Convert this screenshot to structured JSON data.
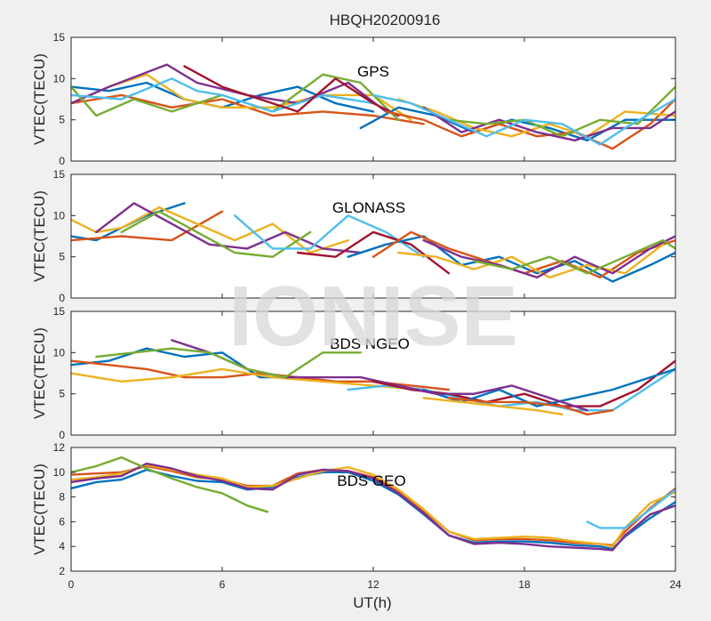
{
  "title": "HBQH20200916",
  "watermark": "IONISE",
  "colors": [
    "#0072bd",
    "#d95319",
    "#edb120",
    "#7e2f8e",
    "#77ac30",
    "#4dbeee",
    "#a2142f"
  ],
  "chart_data": [
    {
      "type": "line",
      "label": "GPS",
      "ylabel": "VTEC(TECU)",
      "xlim": [
        0,
        24
      ],
      "ylim": [
        0,
        15
      ],
      "yticks": [
        0,
        5,
        10,
        15
      ],
      "xticks": [
        0,
        6,
        12,
        18,
        24
      ],
      "series": [
        {
          "x": [
            0,
            1.5,
            3,
            4.5,
            6,
            7.5,
            9,
            10.5,
            12
          ],
          "y": [
            9,
            8.5,
            9.5,
            7.5,
            6.5,
            8,
            9,
            7,
            6
          ]
        },
        {
          "x": [
            0,
            2,
            4,
            6,
            8,
            10,
            12,
            14
          ],
          "y": [
            7,
            8,
            6.5,
            7.5,
            5.5,
            6,
            5.5,
            4.5
          ]
        },
        {
          "x": [
            1.5,
            3,
            4.5,
            6,
            8,
            10,
            12,
            13.5
          ],
          "y": [
            9,
            10.5,
            7.5,
            6.5,
            6.5,
            8,
            8,
            5
          ]
        },
        {
          "x": [
            0,
            1.5,
            3.8,
            5,
            7,
            9,
            11,
            12.5
          ],
          "y": [
            7,
            9,
            11.7,
            9.5,
            8,
            7,
            9.5,
            6
          ]
        },
        {
          "x": [
            0,
            1,
            2.5,
            4,
            6,
            8,
            10,
            11.5,
            13
          ],
          "y": [
            9,
            5.5,
            7.5,
            6,
            8,
            6,
            10.5,
            9.5,
            5
          ]
        },
        {
          "x": [
            0,
            2,
            4,
            5,
            6,
            8,
            10,
            12
          ],
          "y": [
            8,
            7.5,
            10,
            8.5,
            8,
            6,
            8,
            7
          ]
        },
        {
          "x": [
            4.5,
            6,
            7,
            9,
            10.5,
            12,
            13
          ],
          "y": [
            11.5,
            9,
            8,
            6,
            10,
            7,
            5.5
          ]
        },
        {
          "x": [
            11.5,
            13,
            14.5,
            16,
            17.5,
            19,
            20.5,
            22,
            24
          ],
          "y": [
            4,
            6.5,
            5.5,
            3.5,
            5,
            4,
            2.5,
            5,
            5
          ]
        },
        {
          "x": [
            12.5,
            14,
            15.5,
            17,
            18.5,
            20,
            21.5,
            23,
            24
          ],
          "y": [
            6,
            5,
            3,
            4.5,
            3,
            3.5,
            1.5,
            4.5,
            7.5
          ]
        },
        {
          "x": [
            13,
            14.5,
            16,
            17.5,
            19,
            20.5,
            22,
            24
          ],
          "y": [
            7.5,
            6,
            4,
            3,
            4.5,
            3,
            6,
            5.5
          ]
        },
        {
          "x": [
            14,
            15.5,
            17,
            18.5,
            20,
            21.5,
            23,
            24
          ],
          "y": [
            6.5,
            3.5,
            5,
            3.5,
            2.5,
            4,
            4,
            6
          ]
        },
        {
          "x": [
            15,
            16.5,
            18,
            19.5,
            21,
            22.5,
            24
          ],
          "y": [
            5,
            4.5,
            5,
            3,
            5,
            4.5,
            9
          ]
        },
        {
          "x": [
            12,
            13.5,
            15,
            16.5,
            18,
            19.5,
            21,
            22,
            24
          ],
          "y": [
            8,
            7,
            5,
            3,
            5,
            4.5,
            2,
            4,
            7.5
          ]
        }
      ]
    },
    {
      "type": "line",
      "label": "GLONASS",
      "ylabel": "VTEC(TECU)",
      "xlim": [
        0,
        24
      ],
      "ylim": [
        0,
        15
      ],
      "yticks": [
        0,
        5,
        10,
        15
      ],
      "xticks": [
        0,
        6,
        12,
        18,
        24
      ],
      "series": [
        {
          "x": [
            0,
            1,
            2,
            3,
            4.5
          ],
          "y": [
            7.5,
            7,
            8.5,
            10,
            11.5
          ]
        },
        {
          "x": [
            0,
            2,
            4,
            6
          ],
          "y": [
            7,
            7.5,
            7,
            10.5
          ]
        },
        {
          "x": [
            0,
            1,
            2,
            3.5,
            5,
            6.5,
            8,
            9.5,
            11
          ],
          "y": [
            9.5,
            8,
            8.5,
            11,
            9,
            7,
            9,
            5.5,
            7
          ]
        },
        {
          "x": [
            1,
            2.5,
            4,
            5.5,
            7,
            8.5,
            10,
            11.5
          ],
          "y": [
            8,
            11.5,
            9,
            6.5,
            6,
            8,
            6,
            5.5
          ]
        },
        {
          "x": [
            2,
            3.5,
            5,
            6.5,
            8,
            9.5
          ],
          "y": [
            8,
            10.5,
            8,
            5.5,
            5,
            8
          ]
        },
        {
          "x": [
            6.5,
            8,
            9.5,
            11,
            12.5,
            14
          ],
          "y": [
            10,
            6,
            6,
            10,
            8,
            5
          ]
        },
        {
          "x": [
            9,
            10.5,
            12,
            13.5,
            15
          ],
          "y": [
            5.5,
            5,
            8,
            6.5,
            3
          ]
        },
        {
          "x": [
            11,
            12.5,
            14,
            15.5,
            17,
            18.5,
            20,
            21.5,
            23,
            24
          ],
          "y": [
            5,
            6.5,
            7.5,
            4,
            5,
            3,
            4.5,
            2,
            4,
            5.5
          ]
        },
        {
          "x": [
            12,
            13.5,
            15,
            16.5,
            18,
            19.5,
            21,
            22.5,
            24
          ],
          "y": [
            5,
            8,
            6,
            4.5,
            3,
            4.5,
            2.5,
            5.5,
            7
          ]
        },
        {
          "x": [
            13,
            14.5,
            16,
            17.5,
            19,
            20.5,
            22,
            23.5
          ],
          "y": [
            5.5,
            5,
            3.5,
            5,
            2.5,
            4,
            3,
            6.5
          ]
        },
        {
          "x": [
            14,
            15.5,
            17,
            18.5,
            20,
            21.5,
            23,
            24
          ],
          "y": [
            7,
            5,
            4,
            2.5,
            5,
            3,
            6,
            7.5
          ]
        },
        {
          "x": [
            16,
            17.5,
            19,
            20.5,
            22,
            23.5,
            24
          ],
          "y": [
            4.5,
            3.5,
            5,
            3,
            5,
            7,
            6
          ]
        }
      ]
    },
    {
      "type": "line",
      "label": "BDS NGEO",
      "ylabel": "VTEC(TECU)",
      "xlim": [
        0,
        24
      ],
      "ylim": [
        0,
        15
      ],
      "yticks": [
        0,
        5,
        10,
        15
      ],
      "xticks": [
        0,
        6,
        12,
        18,
        24
      ],
      "series": [
        {
          "x": [
            0,
            1.5,
            3,
            4.5,
            6,
            7.5,
            9,
            10.5
          ],
          "y": [
            8.5,
            9,
            10.5,
            9.5,
            10,
            7,
            7,
            6.5
          ]
        },
        {
          "x": [
            0,
            1.5,
            3,
            4.5,
            6,
            7.5,
            9,
            10.5,
            12,
            13.5,
            15
          ],
          "y": [
            9,
            8.5,
            8,
            7,
            7,
            7.5,
            7,
            6.5,
            6.5,
            6,
            5.5
          ]
        },
        {
          "x": [
            0,
            2,
            4,
            6,
            8,
            10,
            12,
            14
          ],
          "y": [
            7.5,
            6.5,
            7,
            8,
            7,
            6.5,
            6,
            5.5
          ]
        },
        {
          "x": [
            4,
            5.5,
            7,
            8.5,
            10,
            11.5,
            13,
            14.5,
            16
          ],
          "y": [
            11.5,
            10,
            8,
            7,
            7,
            7,
            6,
            5,
            5
          ]
        },
        {
          "x": [
            1,
            2.5,
            4,
            5.5,
            7,
            8.5,
            10,
            11.5
          ],
          "y": [
            9.5,
            10,
            10.5,
            10,
            8,
            7,
            10,
            10
          ]
        },
        {
          "x": [
            11,
            12.5,
            14,
            15.5,
            17,
            18.5,
            20,
            21.5,
            23,
            24
          ],
          "y": [
            5.5,
            6,
            5.5,
            4.5,
            3.5,
            4,
            3,
            3,
            6,
            8
          ]
        },
        {
          "x": [
            12,
            13.5,
            15,
            16.5,
            18,
            19.5,
            21,
            22.5,
            24
          ],
          "y": [
            6.5,
            5.5,
            5,
            4,
            5,
            3.5,
            3.5,
            5.5,
            9
          ]
        },
        {
          "x": [
            14,
            15.5,
            17,
            18.5,
            20,
            21.5,
            23,
            24
          ],
          "y": [
            5.5,
            4,
            5.5,
            3.5,
            4.5,
            5.5,
            7,
            8
          ]
        },
        {
          "x": [
            15,
            16.5,
            18,
            19.5,
            20.5,
            21.5
          ],
          "y": [
            4.5,
            4,
            4,
            3.5,
            2.5,
            3
          ]
        },
        {
          "x": [
            14,
            15.5,
            17,
            18.5,
            19.5
          ],
          "y": [
            4.5,
            4,
            3.5,
            3,
            2.5
          ]
        },
        {
          "x": [
            13,
            14.5,
            16,
            17.5,
            19,
            20.5
          ],
          "y": [
            6,
            5,
            5,
            6,
            4.5,
            3
          ]
        }
      ]
    },
    {
      "type": "line",
      "label": "BDS GEO",
      "ylabel": "VTEC(TECU)",
      "xlim": [
        0,
        24
      ],
      "ylim": [
        2,
        12
      ],
      "yticks": [
        2,
        4,
        6,
        8,
        10,
        12
      ],
      "xticks": [
        0,
        6,
        12,
        18,
        24
      ],
      "xticklabels": [
        "0",
        "6",
        "12",
        "18",
        "24"
      ],
      "xlabel": "UT(h)",
      "series": [
        {
          "x": [
            0,
            1,
            2,
            3,
            4,
            5,
            6,
            7,
            8,
            9,
            10,
            11,
            12,
            13,
            14,
            15,
            16,
            17,
            18,
            19,
            20,
            21,
            21.5,
            22,
            23,
            24
          ],
          "y": [
            8.7,
            9.2,
            9.4,
            10.2,
            9.7,
            9.3,
            9.2,
            8.6,
            8.8,
            9.6,
            10,
            10,
            9.3,
            8.2,
            6.6,
            4.9,
            4.3,
            4.4,
            4.4,
            4.3,
            4.1,
            4.0,
            3.8,
            4.8,
            6.3,
            7.6
          ]
        },
        {
          "x": [
            0,
            1,
            2,
            3,
            4,
            5,
            6,
            7,
            8,
            9,
            10,
            11,
            12,
            13,
            14,
            15,
            16,
            17,
            18,
            19,
            20,
            21,
            21.5,
            22,
            23,
            24
          ],
          "y": [
            9.8,
            9.9,
            10,
            10.5,
            10.1,
            9.6,
            9.4,
            8.9,
            8.9,
            9.9,
            10.2,
            10.1,
            9.6,
            8.5,
            6.9,
            5.2,
            4.5,
            4.6,
            4.6,
            4.5,
            4.3,
            4.2,
            4.1,
            5.2,
            7.1,
            8.7
          ]
        },
        {
          "x": [
            0,
            1,
            2,
            3,
            4,
            5,
            6,
            7,
            8,
            9,
            10,
            11,
            12,
            13,
            14,
            15,
            16,
            17,
            18,
            19,
            20,
            21,
            21.5,
            22,
            23,
            24
          ],
          "y": [
            9.4,
            9.6,
            9.9,
            10.6,
            10.2,
            9.8,
            9.5,
            8.8,
            8.9,
            9.5,
            10.1,
            10.4,
            9.8,
            8.6,
            7.0,
            5.2,
            4.6,
            4.7,
            4.8,
            4.7,
            4.4,
            4.2,
            4.0,
            5.5,
            7.5,
            8.4
          ]
        },
        {
          "x": [
            0,
            1,
            2,
            3,
            4,
            5,
            6,
            7,
            8,
            9,
            10,
            11,
            12,
            13,
            14,
            15,
            16,
            17,
            18,
            19,
            20,
            21,
            21.5,
            22,
            23,
            24
          ],
          "y": [
            9.2,
            9.5,
            9.7,
            10.7,
            10.3,
            9.7,
            9.3,
            8.7,
            8.6,
            9.8,
            10.2,
            10.1,
            9.5,
            8.3,
            6.7,
            4.9,
            4.2,
            4.3,
            4.2,
            4.0,
            3.9,
            3.8,
            3.7,
            4.9,
            6.6,
            7.3
          ]
        },
        {
          "x": [
            0,
            1,
            2,
            3,
            4,
            5,
            6,
            7,
            7.8
          ],
          "y": [
            10,
            10.5,
            11.2,
            10.3,
            9.5,
            8.8,
            8.3,
            7.3,
            6.8
          ]
        },
        {
          "x": [
            20.5,
            21,
            22,
            23,
            24
          ],
          "y": [
            6,
            5.5,
            5.5,
            7,
            8.6
          ]
        }
      ]
    }
  ]
}
